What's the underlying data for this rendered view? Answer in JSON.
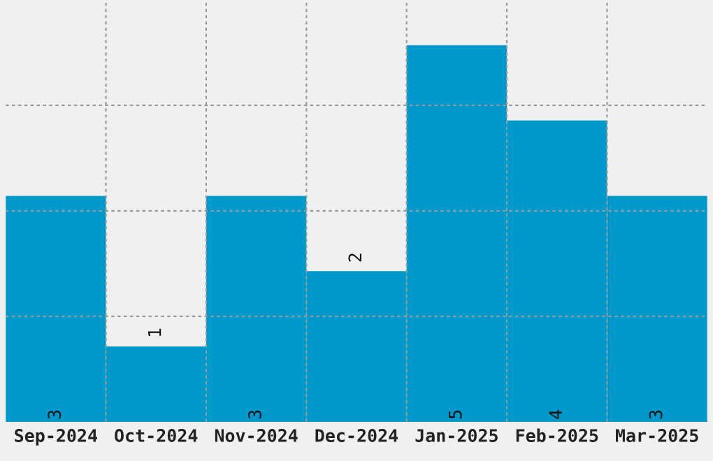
{
  "chart_data": {
    "type": "bar",
    "categories": [
      "Sep-2024",
      "Oct-2024",
      "Nov-2024",
      "Dec-2024",
      "Jan-2025",
      "Feb-2025",
      "Mar-2025"
    ],
    "values": [
      3,
      1,
      3,
      2,
      5,
      4,
      3
    ],
    "color": "#0099cc",
    "data_labels": true,
    "grid": true,
    "ylim": [
      0,
      5.6
    ],
    "yticks": [
      {
        "value": 1.4,
        "label": null
      },
      {
        "value": 2.8,
        "label": null
      },
      {
        "value": 4.2,
        "label": null
      }
    ],
    "tick_labels": "x"
  }
}
